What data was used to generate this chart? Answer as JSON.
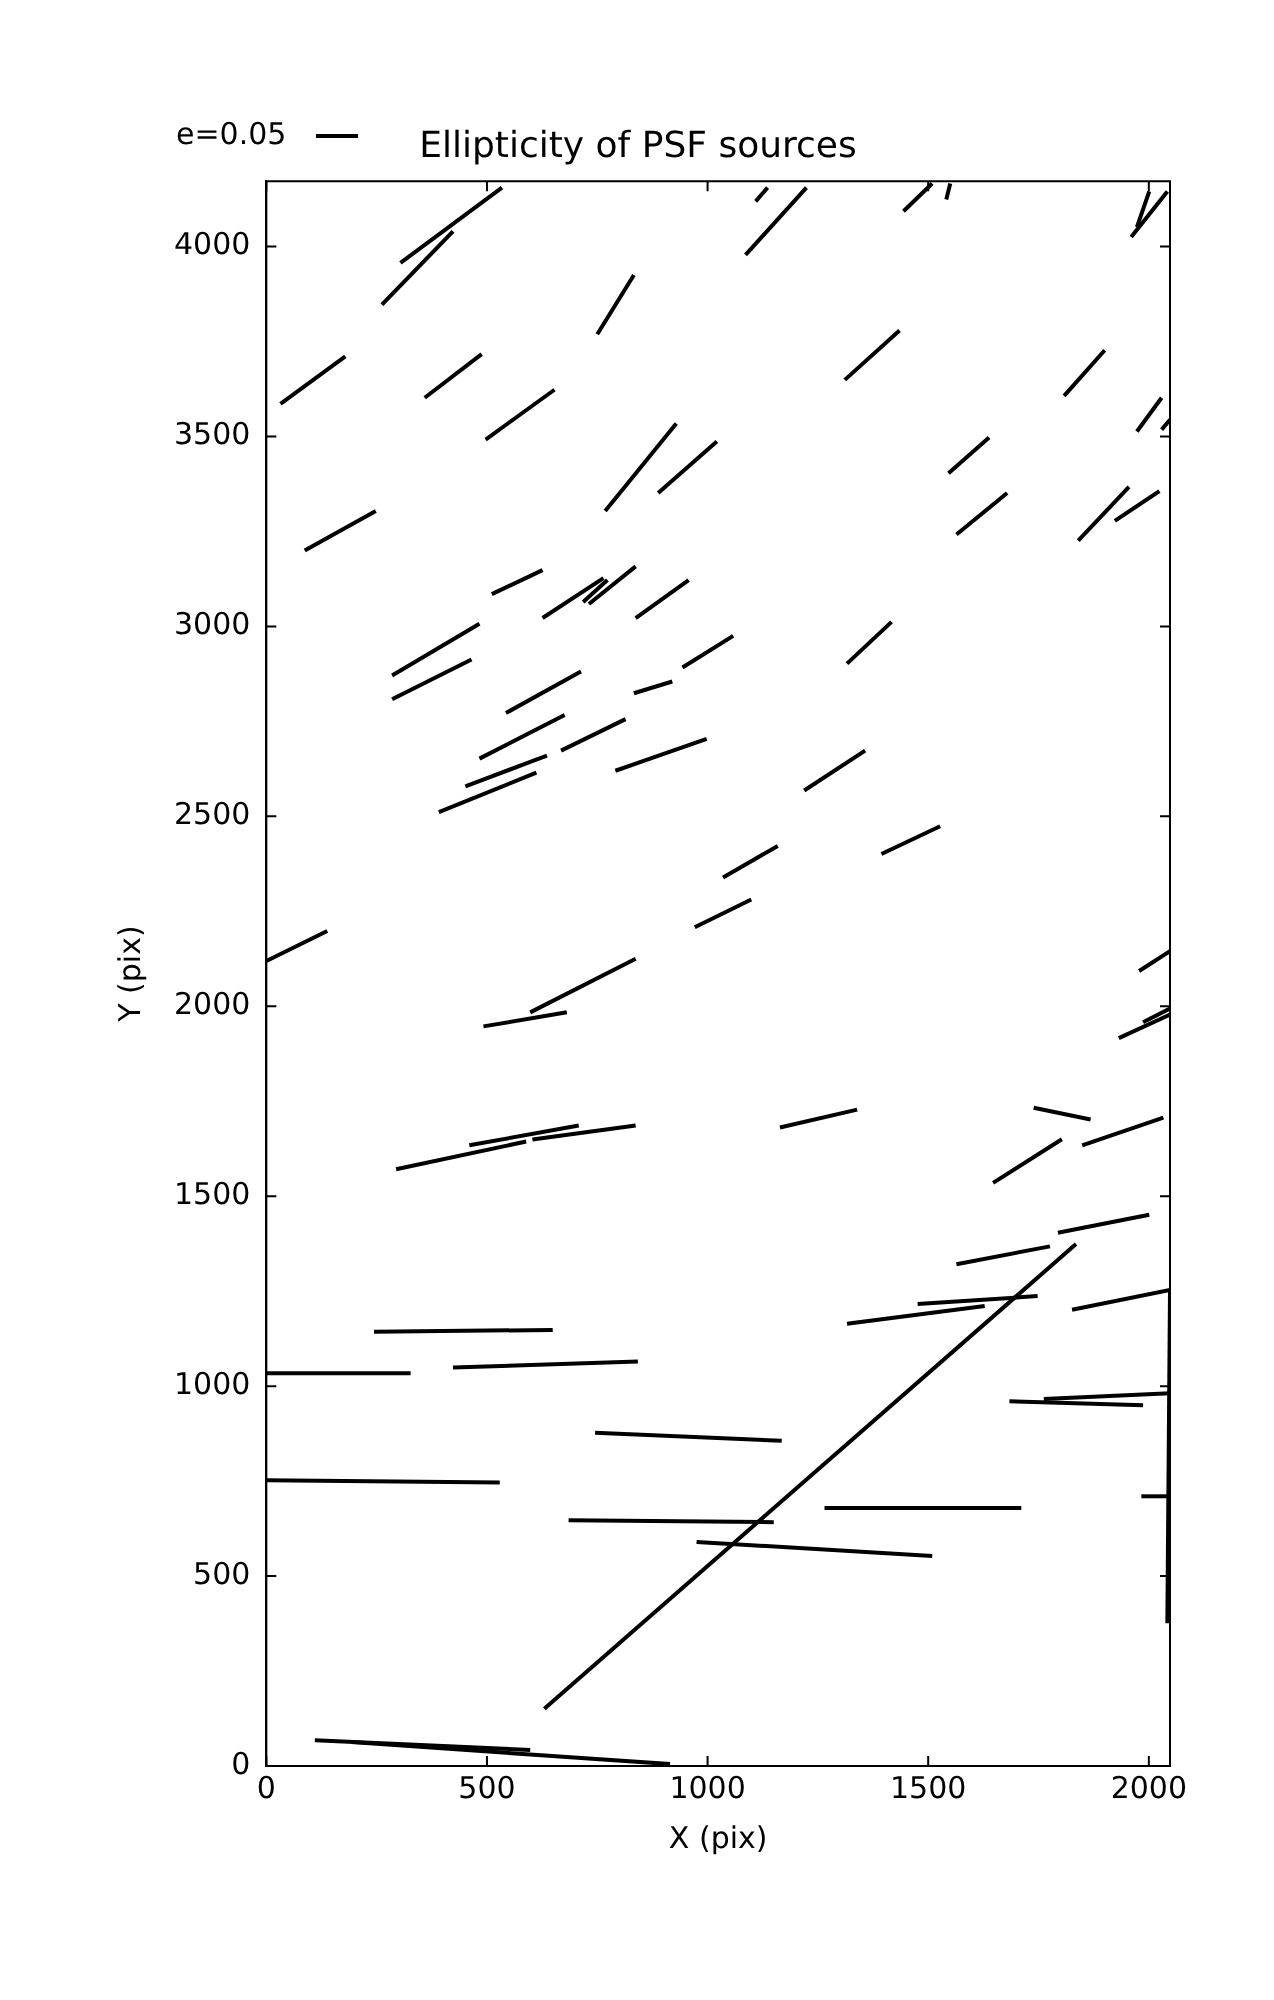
{
  "chart_data": {
    "type": "line",
    "title": "Ellipticity of PSF sources",
    "xlabel": "X (pix)",
    "ylabel": "Y (pix)",
    "annotations": [
      "e=0.05"
    ],
    "xlim": [
      0,
      2048
    ],
    "xticks": [
      0,
      500,
      1000,
      1500,
      2000
    ],
    "ylim": [
      0,
      4172
    ],
    "yticks": [
      0,
      500,
      1000,
      1500,
      2000,
      2500,
      3000,
      3500,
      4000
    ],
    "grid": false,
    "legend": false,
    "marker": "none",
    "line_style": "solid",
    "series": [
      {
        "color": "#000000",
        "x": [
          304,
          534
        ],
        "values": [
          3957,
          4155
        ]
      },
      {
        "color": "#000000",
        "x": [
          262,
          423
        ],
        "values": [
          3847,
          4040
        ]
      },
      {
        "color": "#000000",
        "x": [
          32,
          179
        ],
        "values": [
          3586,
          3711
        ]
      },
      {
        "color": "#000000",
        "x": [
          359,
          488
        ],
        "values": [
          3602,
          3717
        ]
      },
      {
        "color": "#000000",
        "x": [
          497,
          653
        ],
        "values": [
          3492,
          3623
        ]
      },
      {
        "color": "#000000",
        "x": [
          750,
          833
        ],
        "values": [
          3769,
          3925
        ]
      },
      {
        "color": "#000000",
        "x": [
          768,
          929
        ],
        "values": [
          3304,
          3534
        ]
      },
      {
        "color": "#000000",
        "x": [
          888,
          1021
        ],
        "values": [
          3351,
          3487
        ]
      },
      {
        "color": "#000000",
        "x": [
          87,
          248
        ],
        "values": [
          3200,
          3304
        ]
      },
      {
        "color": "#000000",
        "x": [
          511,
          626
        ],
        "values": [
          3085,
          3148
        ]
      },
      {
        "color": "#000000",
        "x": [
          626,
          764
        ],
        "values": [
          3022,
          3127
        ]
      },
      {
        "color": "#000000",
        "x": [
          718,
          773
        ],
        "values": [
          3064,
          3122
        ]
      },
      {
        "color": "#000000",
        "x": [
          731,
          837
        ],
        "values": [
          3059,
          3158
        ]
      },
      {
        "color": "#000000",
        "x": [
          837,
          957
        ],
        "values": [
          3022,
          3122
        ]
      },
      {
        "color": "#000000",
        "x": [
          285,
          483
        ],
        "values": [
          2871,
          3007
        ]
      },
      {
        "color": "#000000",
        "x": [
          285,
          465
        ],
        "values": [
          2808,
          2913
        ]
      },
      {
        "color": "#000000",
        "x": [
          543,
          713
        ],
        "values": [
          2772,
          2881
        ]
      },
      {
        "color": "#000000",
        "x": [
          833,
          920
        ],
        "values": [
          2824,
          2855
        ]
      },
      {
        "color": "#000000",
        "x": [
          943,
          1058
        ],
        "values": [
          2892,
          2975
        ]
      },
      {
        "color": "#000000",
        "x": [
          483,
          676
        ],
        "values": [
          2652,
          2767
        ]
      },
      {
        "color": "#000000",
        "x": [
          451,
          636
        ],
        "values": [
          2579,
          2660
        ]
      },
      {
        "color": "#000000",
        "x": [
          391,
          612
        ],
        "values": [
          2511,
          2615
        ]
      },
      {
        "color": "#000000",
        "x": [
          668,
          814
        ],
        "values": [
          2673,
          2756
        ]
      },
      {
        "color": "#000000",
        "x": [
          791,
          998
        ],
        "values": [
          2620,
          2704
        ]
      },
      {
        "color": "#000000",
        "x": [
          0,
          138
        ],
        "values": [
          2119,
          2198
        ]
      },
      {
        "color": "#000000",
        "x": [
          598,
          837
        ],
        "values": [
          1984,
          2125
        ]
      },
      {
        "color": "#000000",
        "x": [
          492,
          681
        ],
        "values": [
          1947,
          1984
        ]
      },
      {
        "color": "#000000",
        "x": [
          971,
          1099
        ],
        "values": [
          2208,
          2281
        ]
      },
      {
        "color": "#000000",
        "x": [
          1035,
          1159
        ],
        "values": [
          2339,
          2422
        ]
      },
      {
        "color": "#000000",
        "x": [
          1219,
          1357
        ],
        "values": [
          2568,
          2673
        ]
      },
      {
        "color": "#000000",
        "x": [
          1394,
          1527
        ],
        "values": [
          2401,
          2474
        ]
      },
      {
        "color": "#000000",
        "x": [
          1316,
          1417
        ],
        "values": [
          2902,
          3012
        ]
      },
      {
        "color": "#000000",
        "x": [
          1086,
          1224
        ],
        "values": [
          3978,
          4155
        ]
      },
      {
        "color": "#000000",
        "x": [
          1109,
          1136
        ],
        "values": [
          4119,
          4155
        ]
      },
      {
        "color": "#000000",
        "x": [
          1311,
          1435
        ],
        "values": [
          3649,
          3779
        ]
      },
      {
        "color": "#000000",
        "x": [
          1444,
          1509
        ],
        "values": [
          4093,
          4166
        ]
      },
      {
        "color": "#000000",
        "x": [
          1541,
          1550
        ],
        "values": [
          4124,
          4166
        ]
      },
      {
        "color": "#000000",
        "x": [
          1546,
          1638
        ],
        "values": [
          3403,
          3497
        ]
      },
      {
        "color": "#000000",
        "x": [
          1564,
          1679
        ],
        "values": [
          3242,
          3351
        ]
      },
      {
        "color": "#000000",
        "x": [
          1808,
          1900
        ],
        "values": [
          3607,
          3727
        ]
      },
      {
        "color": "#000000",
        "x": [
          1840,
          1955
        ],
        "values": [
          3226,
          3367
        ]
      },
      {
        "color": "#000000",
        "x": [
          1923,
          2024
        ],
        "values": [
          3278,
          3356
        ]
      },
      {
        "color": "#000000",
        "x": [
          1973,
          2029
        ],
        "values": [
          3513,
          3602
        ]
      },
      {
        "color": "#000000",
        "x": [
          2029,
          2048
        ],
        "values": [
          3518,
          3544
        ]
      },
      {
        "color": "#000000",
        "x": [
          1960,
          2042
        ],
        "values": [
          4025,
          4145
        ]
      },
      {
        "color": "#000000",
        "x": [
          1973,
          2001
        ],
        "values": [
          4051,
          4145
        ]
      },
      {
        "color": "#000000",
        "x": [
          1978,
          2048
        ],
        "values": [
          2093,
          2145
        ]
      },
      {
        "color": "#000000",
        "x": [
          1932,
          2048
        ],
        "values": [
          1916,
          1978
        ]
      },
      {
        "color": "#000000",
        "x": [
          1987,
          2048
        ],
        "values": [
          1958,
          1994
        ]
      },
      {
        "color": "#000000",
        "x": [
          294,
          589
        ],
        "values": [
          1571,
          1644
        ]
      },
      {
        "color": "#000000",
        "x": [
          460,
          708
        ],
        "values": [
          1634,
          1686
        ]
      },
      {
        "color": "#000000",
        "x": [
          603,
          837
        ],
        "values": [
          1649,
          1686
        ]
      },
      {
        "color": "#000000",
        "x": [
          1164,
          1339
        ],
        "values": [
          1681,
          1728
        ]
      },
      {
        "color": "#000000",
        "x": [
          1647,
          1803
        ],
        "values": [
          1535,
          1650
        ]
      },
      {
        "color": "#000000",
        "x": [
          1739,
          1868
        ],
        "values": [
          1733,
          1702
        ]
      },
      {
        "color": "#000000",
        "x": [
          1849,
          2033
        ],
        "values": [
          1634,
          1707
        ]
      },
      {
        "color": "#000000",
        "x": [
          1794,
          2001
        ],
        "values": [
          1404,
          1451
        ]
      },
      {
        "color": "#000000",
        "x": [
          1564,
          1776
        ],
        "values": [
          1321,
          1368
        ]
      },
      {
        "color": "#000000",
        "x": [
          1826,
          2048
        ],
        "values": [
          1201,
          1253
        ]
      },
      {
        "color": "#000000",
        "x": [
          1316,
          1628
        ],
        "values": [
          1164,
          1211
        ]
      },
      {
        "color": "#000000",
        "x": [
          1476,
          1748
        ],
        "values": [
          1216,
          1237
        ]
      },
      {
        "color": "#000000",
        "x": [
          630,
          1835
        ],
        "values": [
          151,
          1374
        ]
      },
      {
        "color": "#000000",
        "x": [
          244,
          649
        ],
        "values": [
          1143,
          1148
        ]
      },
      {
        "color": "#000000",
        "x": [
          0,
          327
        ],
        "values": [
          1034,
          1034
        ]
      },
      {
        "color": "#000000",
        "x": [
          423,
          842
        ],
        "values": [
          1049,
          1065
        ]
      },
      {
        "color": "#000000",
        "x": [
          745,
          1168
        ],
        "values": [
          877,
          856
        ]
      },
      {
        "color": "#000000",
        "x": [
          0,
          529
        ],
        "values": [
          752,
          746
        ]
      },
      {
        "color": "#000000",
        "x": [
          685,
          1150
        ],
        "values": [
          647,
          642
        ]
      },
      {
        "color": "#000000",
        "x": [
          1265,
          1711
        ],
        "values": [
          679,
          679
        ]
      },
      {
        "color": "#000000",
        "x": [
          975,
          1509
        ],
        "values": [
          590,
          553
        ]
      },
      {
        "color": "#000000",
        "x": [
          1684,
          1987
        ],
        "values": [
          960,
          950
        ]
      },
      {
        "color": "#000000",
        "x": [
          1762,
          2048
        ],
        "values": [
          966,
          981
        ]
      },
      {
        "color": "#000000",
        "x": [
          1983,
          2048
        ],
        "values": [
          710,
          710
        ]
      },
      {
        "color": "#000000",
        "x": [
          2048,
          2042
        ],
        "values": [
          1248,
          376
        ]
      },
      {
        "color": "#000000",
        "x": [
          110,
          598
        ],
        "values": [
          68,
          42
        ]
      },
      {
        "color": "#000000",
        "x": [
          193,
          915
        ],
        "values": [
          63,
          5
        ]
      }
    ]
  }
}
